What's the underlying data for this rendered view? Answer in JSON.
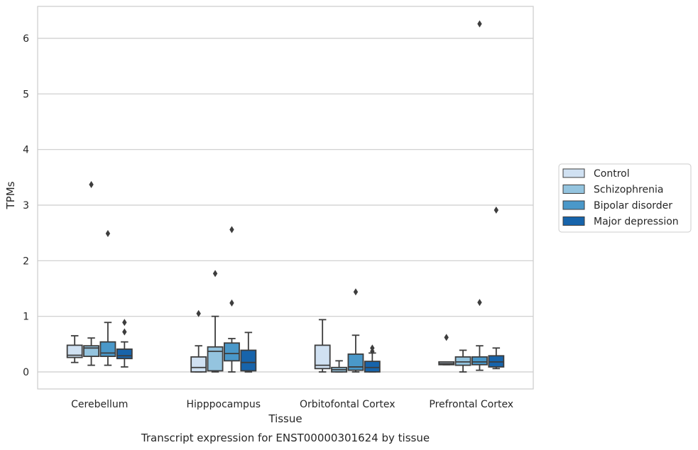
{
  "chart_data": {
    "type": "box",
    "caption": "Transcript expression for ENST00000301624 by tissue",
    "xlabel": "Tissue",
    "ylabel": "TPMs",
    "ylim": [
      -0.3,
      6.6
    ],
    "yticks": [
      0,
      1,
      2,
      3,
      4,
      5,
      6
    ],
    "grid": "horizontal",
    "legend_position": "right",
    "categories": [
      "Cerebellum",
      "Hipppocampus",
      "Orbitofontal Cortex",
      "Prefrontal Cortex"
    ],
    "series": [
      {
        "name": "Control",
        "color": "#d0e1f2",
        "boxes": [
          {
            "whislo": 0.17,
            "q1": 0.26,
            "med": 0.3,
            "q3": 0.48,
            "whishi": 0.65,
            "fliers": []
          },
          {
            "whislo": 0.0,
            "q1": 0.0,
            "med": 0.08,
            "q3": 0.27,
            "whishi": 0.47,
            "fliers": [
              1.05
            ]
          },
          {
            "whislo": 0.0,
            "q1": 0.06,
            "med": 0.12,
            "q3": 0.48,
            "whishi": 0.94,
            "fliers": []
          },
          {
            "whislo": 0.13,
            "q1": 0.13,
            "med": 0.15,
            "q3": 0.18,
            "whishi": 0.18,
            "fliers": [
              0.62
            ]
          }
        ]
      },
      {
        "name": "Schizophrenia",
        "color": "#94c4df",
        "boxes": [
          {
            "whislo": 0.12,
            "q1": 0.28,
            "med": 0.43,
            "q3": 0.47,
            "whishi": 0.61,
            "fliers": [
              3.37
            ]
          },
          {
            "whislo": 0.0,
            "q1": 0.02,
            "med": 0.37,
            "q3": 0.45,
            "whishi": 1.0,
            "fliers": [
              1.77
            ]
          },
          {
            "whislo": 0.0,
            "q1": 0.0,
            "med": 0.04,
            "q3": 0.08,
            "whishi": 0.2,
            "fliers": []
          },
          {
            "whislo": 0.0,
            "q1": 0.12,
            "med": 0.18,
            "q3": 0.27,
            "whishi": 0.39,
            "fliers": []
          }
        ]
      },
      {
        "name": "Bipolar disorder",
        "color": "#4a98c9",
        "boxes": [
          {
            "whislo": 0.12,
            "q1": 0.28,
            "med": 0.34,
            "q3": 0.54,
            "whishi": 0.89,
            "fliers": [
              2.49
            ]
          },
          {
            "whislo": 0.0,
            "q1": 0.2,
            "med": 0.33,
            "q3": 0.52,
            "whishi": 0.6,
            "fliers": [
              1.24,
              2.56
            ]
          },
          {
            "whislo": 0.0,
            "q1": 0.03,
            "med": 0.09,
            "q3": 0.32,
            "whishi": 0.66,
            "fliers": [
              1.44
            ]
          },
          {
            "whislo": 0.03,
            "q1": 0.13,
            "med": 0.18,
            "q3": 0.27,
            "whishi": 0.47,
            "fliers": [
              1.25,
              6.26
            ]
          }
        ]
      },
      {
        "name": "Major depression",
        "color": "#1764ab",
        "boxes": [
          {
            "whislo": 0.09,
            "q1": 0.24,
            "med": 0.29,
            "q3": 0.41,
            "whishi": 0.54,
            "fliers": [
              0.72,
              0.89
            ]
          },
          {
            "whislo": 0.0,
            "q1": 0.02,
            "med": 0.17,
            "q3": 0.39,
            "whishi": 0.71,
            "fliers": []
          },
          {
            "whislo": 0.0,
            "q1": 0.0,
            "med": 0.08,
            "q3": 0.19,
            "whishi": 0.34,
            "fliers": [
              0.37,
              0.43
            ]
          },
          {
            "whislo": 0.06,
            "q1": 0.09,
            "med": 0.18,
            "q3": 0.29,
            "whishi": 0.43,
            "fliers": [
              2.91
            ]
          }
        ]
      }
    ]
  }
}
